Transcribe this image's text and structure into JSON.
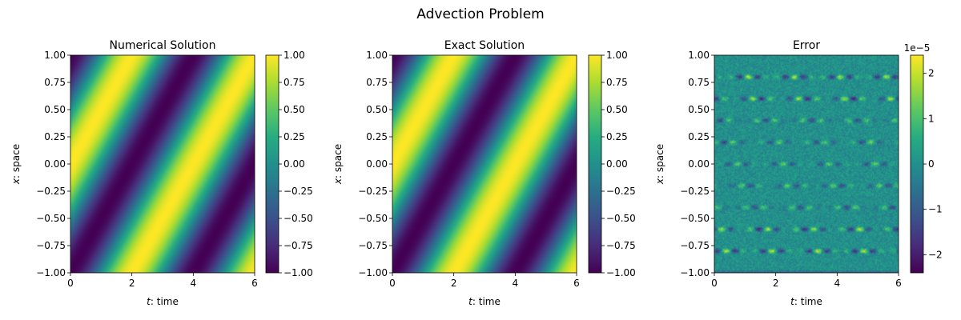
{
  "suptitle": "Advection Problem",
  "colormap": "viridis",
  "chart_data": [
    {
      "type": "heatmap",
      "title": "Numerical Solution",
      "xlabel_var": "t",
      "xlabel_text": ": time",
      "ylabel_var": "x",
      "ylabel_text": ": space",
      "xlim": [
        0,
        6
      ],
      "ylim": [
        -1,
        1
      ],
      "xticks": [
        0,
        2,
        4,
        6
      ],
      "xtick_labels": [
        "0",
        "2",
        "4",
        "6"
      ],
      "yticks": [
        -1,
        -0.75,
        -0.5,
        -0.25,
        0,
        0.25,
        0.5,
        0.75,
        1
      ],
      "ytick_labels": [
        "−1.00",
        "−0.75",
        "−0.50",
        "−0.25",
        "0.00",
        "0.25",
        "0.50",
        "0.75",
        "1.00"
      ],
      "field": "u(t,x) = cos(π(x − t/2))",
      "colorbar": {
        "range": [
          -1,
          1
        ],
        "ticks": [
          -1,
          -0.75,
          -0.5,
          -0.25,
          0,
          0.25,
          0.5,
          0.75,
          1
        ],
        "tick_labels": [
          "−1.00",
          "−0.75",
          "−0.50",
          "−0.25",
          "0.00",
          "0.25",
          "0.50",
          "0.75",
          "1.00"
        ],
        "offset_text": ""
      }
    },
    {
      "type": "heatmap",
      "title": "Exact Solution",
      "xlabel_var": "t",
      "xlabel_text": ": time",
      "ylabel_var": "x",
      "ylabel_text": ": space",
      "xlim": [
        0,
        6
      ],
      "ylim": [
        -1,
        1
      ],
      "xticks": [
        0,
        2,
        4,
        6
      ],
      "xtick_labels": [
        "0",
        "2",
        "4",
        "6"
      ],
      "yticks": [
        -1,
        -0.75,
        -0.5,
        -0.25,
        0,
        0.25,
        0.5,
        0.75,
        1
      ],
      "ytick_labels": [
        "−1.00",
        "−0.75",
        "−0.50",
        "−0.25",
        "0.00",
        "0.25",
        "0.50",
        "0.75",
        "1.00"
      ],
      "field": "u(t,x) = cos(π(x − t/2))",
      "colorbar": {
        "range": [
          -1,
          1
        ],
        "ticks": [
          -1,
          -0.75,
          -0.5,
          -0.25,
          0,
          0.25,
          0.5,
          0.75,
          1
        ],
        "tick_labels": [
          "−1.00",
          "−0.75",
          "−0.50",
          "−0.25",
          "0.00",
          "0.25",
          "0.50",
          "0.75",
          "1.00"
        ],
        "offset_text": ""
      }
    },
    {
      "type": "heatmap",
      "title": "Error",
      "xlabel_var": "t",
      "xlabel_text": ": time",
      "ylabel_var": "x",
      "ylabel_text": ": space",
      "xlim": [
        0,
        6
      ],
      "ylim": [
        -1,
        1
      ],
      "xticks": [
        0,
        2,
        4,
        6
      ],
      "xtick_labels": [
        "0",
        "2",
        "4",
        "6"
      ],
      "yticks": [
        -1,
        -0.75,
        -0.5,
        -0.25,
        0,
        0.25,
        0.5,
        0.75,
        1
      ],
      "ytick_labels": [
        "−1.00",
        "−0.75",
        "−0.50",
        "−0.25",
        "0.00",
        "0.25",
        "0.50",
        "0.75",
        "1.00"
      ],
      "field": "small oscillating error, banded near x = ±0.8, ±0.6, ±0.4, ±0.2",
      "colorbar": {
        "range": [
          -2.4e-05,
          2.4e-05
        ],
        "ticks": [
          -2e-05,
          -1e-05,
          0,
          1e-05,
          2e-05
        ],
        "tick_labels": [
          "−2",
          "−1",
          "0",
          "1",
          "2"
        ],
        "offset_text": "1e−5"
      }
    }
  ]
}
